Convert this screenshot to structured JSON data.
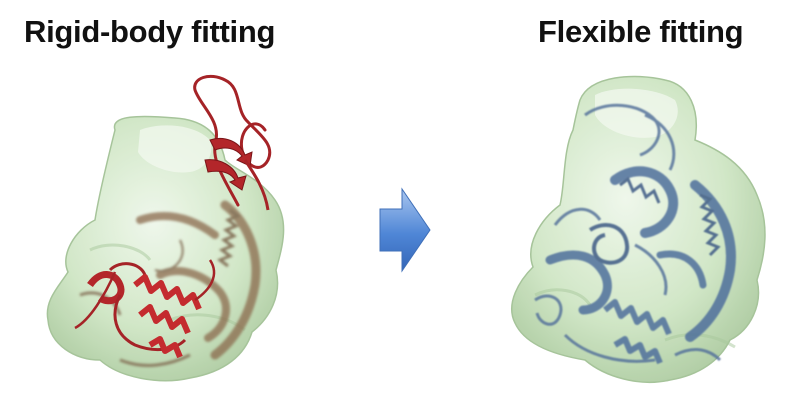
{
  "figure": {
    "left_panel": {
      "title": "Rigid-body fitting",
      "structure_color": "#b3262a"
    },
    "right_panel": {
      "title": "Flexible fitting",
      "structure_color": "#4f6f9c"
    },
    "density_map_color": "#cfe6c4",
    "arrow": {
      "icon": "arrow-right-icon",
      "color": "#4f86d6"
    }
  }
}
